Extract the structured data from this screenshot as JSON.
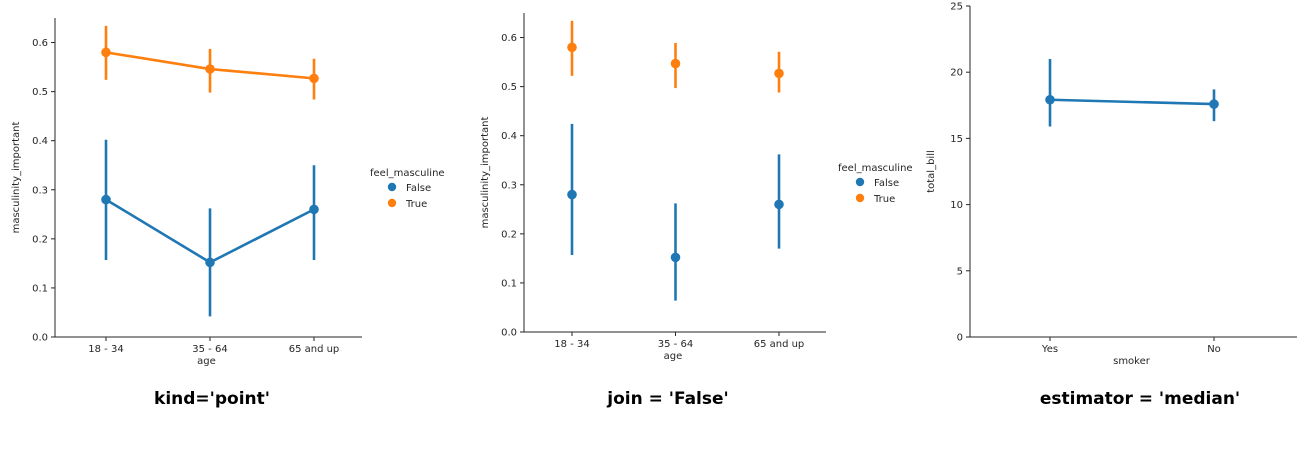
{
  "colors": {
    "false": "#1f77b4",
    "true": "#ff7f0e",
    "axis": "#262626"
  },
  "chart_data": [
    {
      "type": "line",
      "caption": "kind='point'",
      "xlabel": "age",
      "ylabel": "masculinity_important",
      "categories": [
        "18 - 34",
        "35 - 64",
        "65 and up"
      ],
      "ylim": [
        0.0,
        0.65
      ],
      "yticks": [
        "0.0",
        "0.1",
        "0.2",
        "0.3",
        "0.4",
        "0.5",
        "0.6"
      ],
      "join": true,
      "legend": {
        "title": "feel_masculine",
        "entries": [
          "False",
          "True"
        ],
        "placement": "right"
      },
      "series": [
        {
          "name": "False",
          "color": "#1f77b4",
          "values": [
            0.28,
            0.152,
            0.26
          ],
          "ci_low": [
            0.157,
            0.042,
            0.157
          ],
          "ci_high": [
            0.402,
            0.262,
            0.35
          ]
        },
        {
          "name": "True",
          "color": "#ff7f0e",
          "values": [
            0.58,
            0.546,
            0.527
          ],
          "ci_low": [
            0.524,
            0.498,
            0.484
          ],
          "ci_high": [
            0.634,
            0.587,
            0.567
          ]
        }
      ]
    },
    {
      "type": "scatter",
      "caption": "join = 'False'",
      "xlabel": "age",
      "ylabel": "masculinity_important",
      "categories": [
        "18 - 34",
        "35 - 64",
        "65 and up"
      ],
      "ylim": [
        0.0,
        0.65
      ],
      "yticks": [
        "0.0",
        "0.1",
        "0.2",
        "0.3",
        "0.4",
        "0.5",
        "0.6"
      ],
      "join": false,
      "legend": {
        "title": "feel_masculine",
        "entries": [
          "False",
          "True"
        ],
        "placement": "right"
      },
      "series": [
        {
          "name": "False",
          "color": "#1f77b4",
          "values": [
            0.28,
            0.152,
            0.26
          ],
          "ci_low": [
            0.157,
            0.064,
            0.17
          ],
          "ci_high": [
            0.424,
            0.262,
            0.362
          ]
        },
        {
          "name": "True",
          "color": "#ff7f0e",
          "values": [
            0.58,
            0.547,
            0.527
          ],
          "ci_low": [
            0.522,
            0.497,
            0.488
          ],
          "ci_high": [
            0.634,
            0.589,
            0.571
          ]
        }
      ]
    },
    {
      "type": "line",
      "caption": "estimator = 'median'",
      "xlabel": "smoker",
      "ylabel": "total_bill",
      "categories": [
        "Yes",
        "No"
      ],
      "ylim": [
        0,
        25
      ],
      "yticks": [
        "0",
        "5",
        "10",
        "15",
        "20",
        "25"
      ],
      "join": true,
      "series": [
        {
          "color": "#1f77b4",
          "values": [
            17.92,
            17.59
          ],
          "ci_low": [
            15.9,
            16.3
          ],
          "ci_high": [
            21.0,
            18.7
          ]
        }
      ]
    }
  ]
}
